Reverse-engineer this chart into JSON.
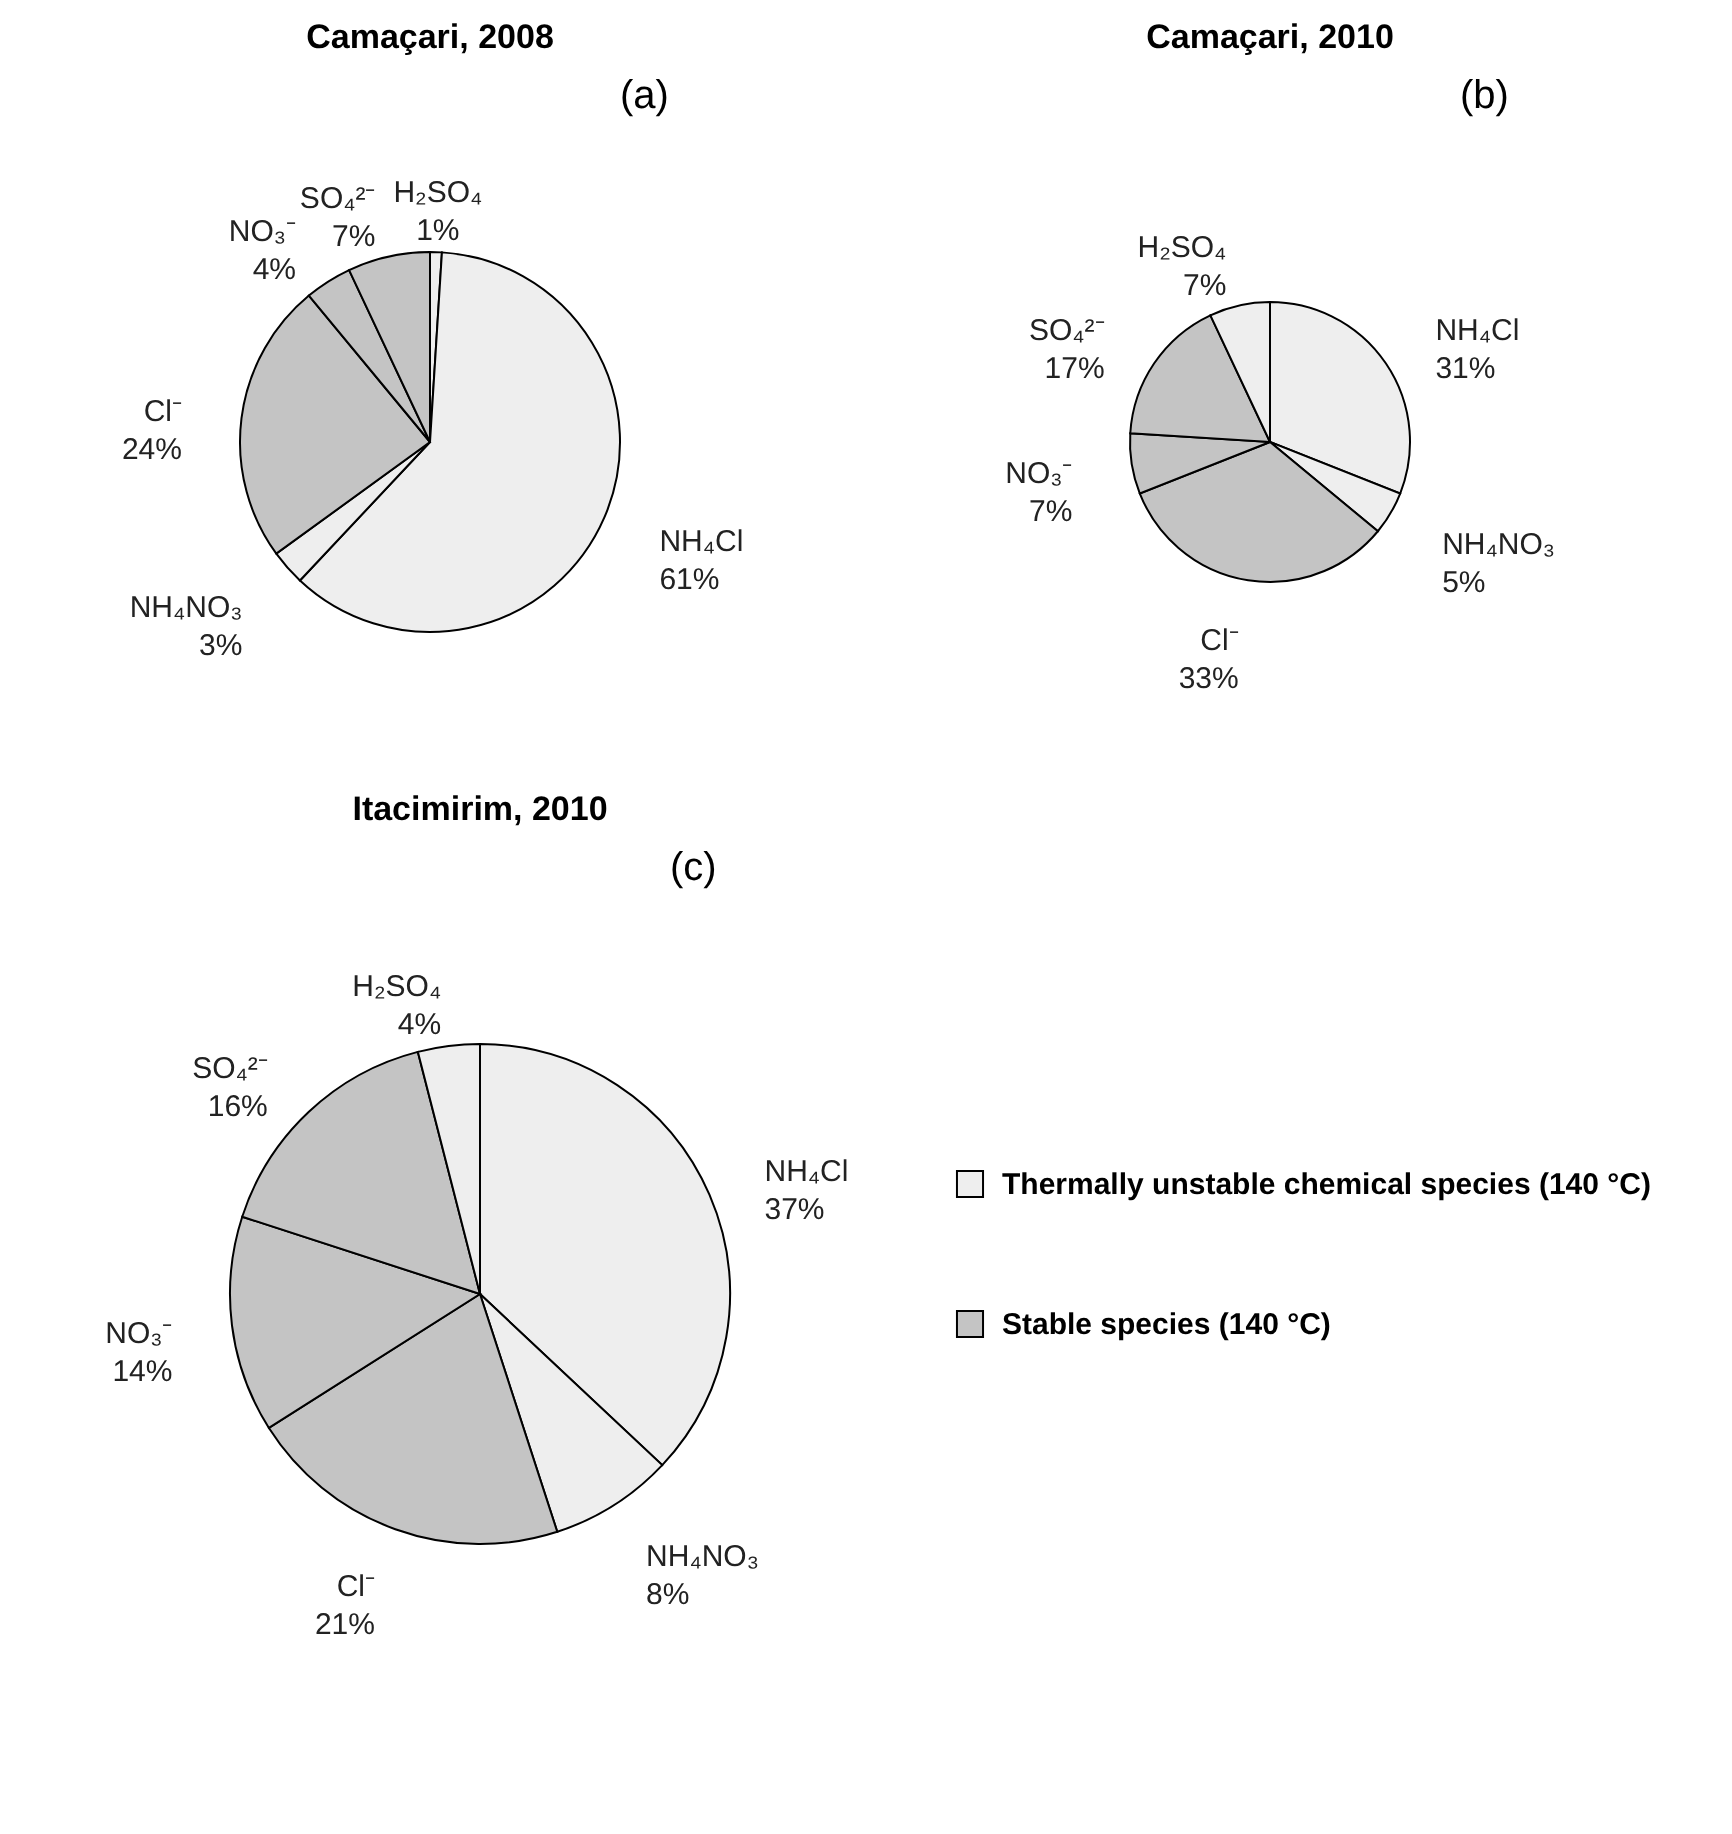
{
  "chart_data": [
    {
      "type": "pie",
      "title": "Camaçari, 2008",
      "annotations": [
        "(a)"
      ],
      "categories": [
        "H₂SO₄",
        "NH₄Cl",
        "NH₄NO₃",
        "Cl⁻",
        "NO₃⁻",
        "SO₄²⁻"
      ],
      "values": [
        1,
        61,
        3,
        24,
        4,
        7
      ],
      "value_labels": [
        "1%",
        "61%",
        "3%",
        "24%",
        "4%",
        "7%"
      ],
      "colors": [
        "#eeeeee",
        "#eeeeee",
        "#eeeeee",
        "#c4c4c4",
        "#c4c4c4",
        "#c4c4c4"
      ]
    },
    {
      "type": "pie",
      "title": "Camaçari, 2010",
      "annotations": [
        "(b)"
      ],
      "categories": [
        "NH₄Cl",
        "NH₄NO₃",
        "Cl⁻",
        "NO₃⁻",
        "SO₄²⁻",
        "H₂SO₄"
      ],
      "values": [
        31,
        5,
        33,
        7,
        17,
        7
      ],
      "value_labels": [
        "31%",
        "5%",
        "33%",
        "7%",
        "17%",
        "7%"
      ],
      "colors": [
        "#eeeeee",
        "#eeeeee",
        "#c4c4c4",
        "#c4c4c4",
        "#c4c4c4",
        "#eeeeee"
      ]
    },
    {
      "type": "pie",
      "title": "Itacimirim, 2010",
      "annotations": [
        "(c)"
      ],
      "categories": [
        "NH₄Cl",
        "NH₄NO₃",
        "Cl⁻",
        "NO₃⁻",
        "SO₄²⁻",
        "H₂SO₄"
      ],
      "values": [
        37,
        8,
        21,
        14,
        16,
        4
      ],
      "value_labels": [
        "37%",
        "8%",
        "21%",
        "14%",
        "16%",
        "4%"
      ],
      "colors": [
        "#eeeeee",
        "#eeeeee",
        "#c4c4c4",
        "#c4c4c4",
        "#c4c4c4",
        "#eeeeee"
      ]
    },
    {
      "type": "other",
      "annotations": [
        "Thermally unstable chemical species (140 °C)",
        "Stable species (140 °C)"
      ],
      "colors": [
        "#eeeeee",
        "#c4c4c4"
      ]
    }
  ]
}
